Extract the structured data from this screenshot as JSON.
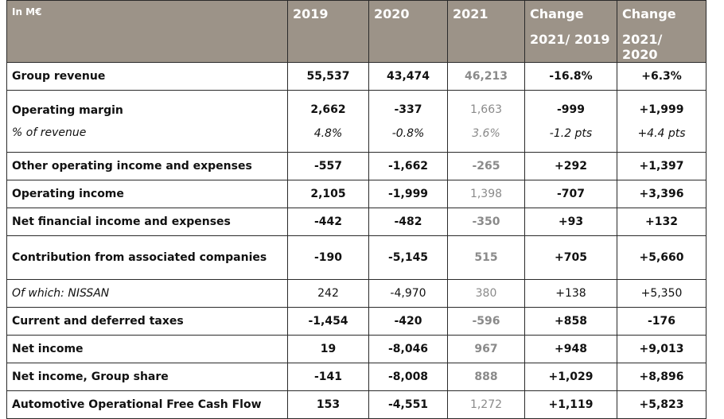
{
  "header": {
    "unit": "In M€",
    "y2019": "2019",
    "y2020": "2020",
    "y2021": "2021",
    "change1_a": "Change",
    "change1_b": "2021/ 2019",
    "change2_a": "Change",
    "change2_b": "2021/ 2020"
  },
  "rows": {
    "revenue": {
      "label": "Group revenue",
      "v2019": "55,537",
      "v2020": "43,474",
      "v2021": "46,213",
      "c1": "-16.8%",
      "c2": "+6.3%"
    },
    "opmargin": {
      "label": "Operating margin",
      "sub": "% of revenue",
      "v2019": "2,662",
      "v2020": "-337",
      "v2021": "1,663",
      "c1": "-999",
      "c2": "+1,999",
      "p2019": "4.8%",
      "p2020": "-0.8%",
      "p2021": "3.6%",
      "pc1": "-1.2 pts",
      "pc2": "+4.4 pts"
    },
    "otherop": {
      "label": "Other operating income and expenses",
      "v2019": "-557",
      "v2020": "-1,662",
      "v2021": "-265",
      "c1": "+292",
      "c2": "+1,397"
    },
    "opincome": {
      "label": "Operating income",
      "v2019": "2,105",
      "v2020": "-1,999",
      "v2021": "1,398",
      "c1": "-707",
      "c2": "+3,396"
    },
    "netfin": {
      "label": "Net financial income and expenses",
      "v2019": "-442",
      "v2020": "-482",
      "v2021": "-350",
      "c1": "+93",
      "c2": "+132"
    },
    "assoc": {
      "label": "Contribution from associated companies",
      "v2019": "-190",
      "v2020": "-5,145",
      "v2021": "515",
      "c1": "+705",
      "c2": "+5,660"
    },
    "nissan": {
      "label": "Of which: NISSAN",
      "v2019": "242",
      "v2020": "-4,970",
      "v2021": "380",
      "c1": "+138",
      "c2": "+5,350"
    },
    "taxes": {
      "label": "Current and deferred taxes",
      "v2019": "-1,454",
      "v2020": "-420",
      "v2021": "-596",
      "c1": "+858",
      "c2": "-176"
    },
    "netincome": {
      "label": "Net income",
      "v2019": "19",
      "v2020": "-8,046",
      "v2021": "967",
      "c1": "+948",
      "c2": "+9,013"
    },
    "groupshare": {
      "label": "Net income, Group share",
      "v2019": "-141",
      "v2020": "-8,008",
      "v2021": "888",
      "c1": "+1,029",
      "c2": "+8,896"
    },
    "afcf": {
      "label": "Automotive Operational Free Cash Flow",
      "v2019": "153",
      "v2020": "-4,551",
      "v2021": "1,272",
      "c1": "+1,119",
      "c2": "+5,823"
    }
  }
}
